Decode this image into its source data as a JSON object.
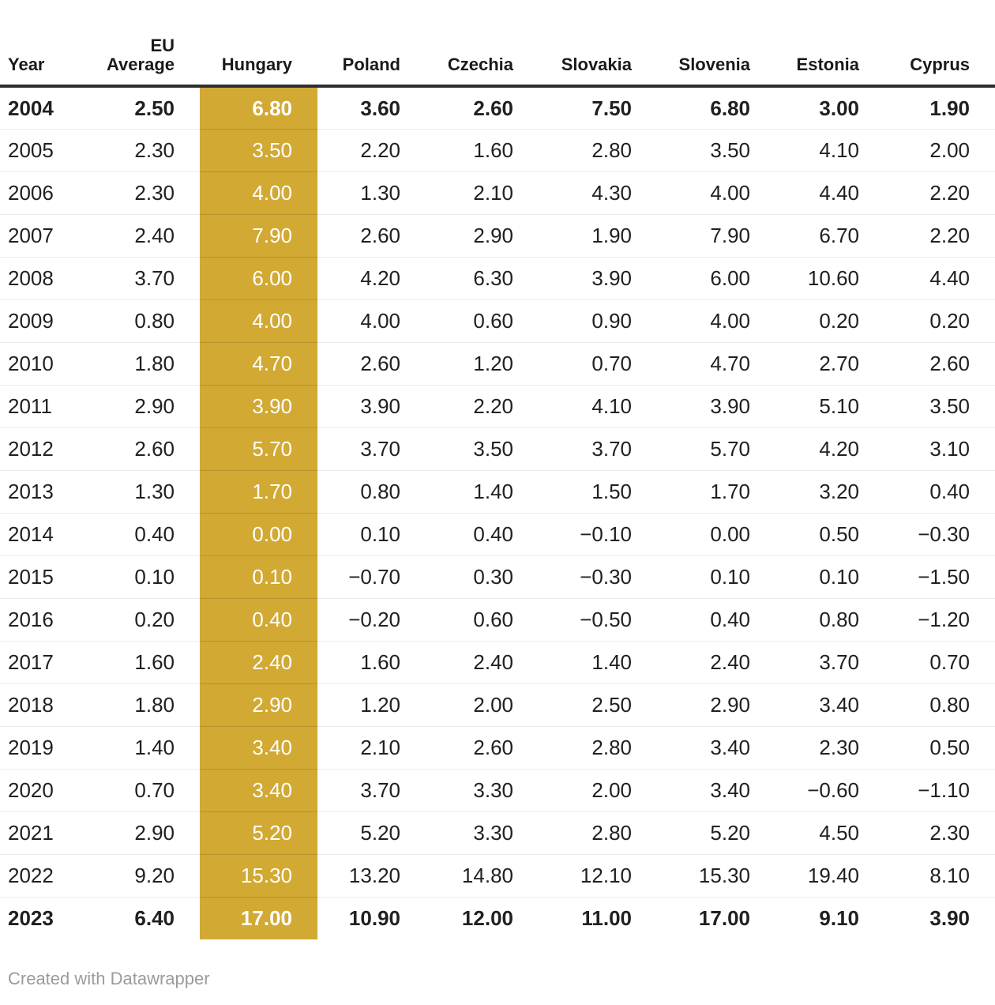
{
  "chart_data": {
    "type": "table",
    "columns": [
      {
        "label": "Year",
        "align": "left"
      },
      {
        "label": "EU Average",
        "wrap": true
      },
      {
        "label": "Hungary",
        "highlight": true
      },
      {
        "label": "Poland"
      },
      {
        "label": "Czechia"
      },
      {
        "label": "Slovakia"
      },
      {
        "label": "Slovenia"
      },
      {
        "label": "Estonia"
      },
      {
        "label": "Cyprus"
      }
    ],
    "rows": [
      {
        "bold": true,
        "values": [
          "2004",
          "2.50",
          "6.80",
          "3.60",
          "2.60",
          "7.50",
          "6.80",
          "3.00",
          "1.90"
        ]
      },
      {
        "bold": false,
        "values": [
          "2005",
          "2.30",
          "3.50",
          "2.20",
          "1.60",
          "2.80",
          "3.50",
          "4.10",
          "2.00"
        ]
      },
      {
        "bold": false,
        "values": [
          "2006",
          "2.30",
          "4.00",
          "1.30",
          "2.10",
          "4.30",
          "4.00",
          "4.40",
          "2.20"
        ]
      },
      {
        "bold": false,
        "values": [
          "2007",
          "2.40",
          "7.90",
          "2.60",
          "2.90",
          "1.90",
          "7.90",
          "6.70",
          "2.20"
        ]
      },
      {
        "bold": false,
        "values": [
          "2008",
          "3.70",
          "6.00",
          "4.20",
          "6.30",
          "3.90",
          "6.00",
          "10.60",
          "4.40"
        ]
      },
      {
        "bold": false,
        "values": [
          "2009",
          "0.80",
          "4.00",
          "4.00",
          "0.60",
          "0.90",
          "4.00",
          "0.20",
          "0.20"
        ]
      },
      {
        "bold": false,
        "values": [
          "2010",
          "1.80",
          "4.70",
          "2.60",
          "1.20",
          "0.70",
          "4.70",
          "2.70",
          "2.60"
        ]
      },
      {
        "bold": false,
        "values": [
          "2011",
          "2.90",
          "3.90",
          "3.90",
          "2.20",
          "4.10",
          "3.90",
          "5.10",
          "3.50"
        ]
      },
      {
        "bold": false,
        "values": [
          "2012",
          "2.60",
          "5.70",
          "3.70",
          "3.50",
          "3.70",
          "5.70",
          "4.20",
          "3.10"
        ]
      },
      {
        "bold": false,
        "values": [
          "2013",
          "1.30",
          "1.70",
          "0.80",
          "1.40",
          "1.50",
          "1.70",
          "3.20",
          "0.40"
        ]
      },
      {
        "bold": false,
        "values": [
          "2014",
          "0.40",
          "0.00",
          "0.10",
          "0.40",
          "−0.10",
          "0.00",
          "0.50",
          "−0.30"
        ]
      },
      {
        "bold": false,
        "values": [
          "2015",
          "0.10",
          "0.10",
          "−0.70",
          "0.30",
          "−0.30",
          "0.10",
          "0.10",
          "−1.50"
        ]
      },
      {
        "bold": false,
        "values": [
          "2016",
          "0.20",
          "0.40",
          "−0.20",
          "0.60",
          "−0.50",
          "0.40",
          "0.80",
          "−1.20"
        ]
      },
      {
        "bold": false,
        "values": [
          "2017",
          "1.60",
          "2.40",
          "1.60",
          "2.40",
          "1.40",
          "2.40",
          "3.70",
          "0.70"
        ]
      },
      {
        "bold": false,
        "values": [
          "2018",
          "1.80",
          "2.90",
          "1.20",
          "2.00",
          "2.50",
          "2.90",
          "3.40",
          "0.80"
        ]
      },
      {
        "bold": false,
        "values": [
          "2019",
          "1.40",
          "3.40",
          "2.10",
          "2.60",
          "2.80",
          "3.40",
          "2.30",
          "0.50"
        ]
      },
      {
        "bold": false,
        "values": [
          "2020",
          "0.70",
          "3.40",
          "3.70",
          "3.30",
          "2.00",
          "3.40",
          "−0.60",
          "−1.10"
        ]
      },
      {
        "bold": false,
        "values": [
          "2021",
          "2.90",
          "5.20",
          "5.20",
          "3.30",
          "2.80",
          "5.20",
          "4.50",
          "2.30"
        ]
      },
      {
        "bold": false,
        "values": [
          "2022",
          "9.20",
          "15.30",
          "13.20",
          "14.80",
          "12.10",
          "15.30",
          "19.40",
          "8.10"
        ]
      },
      {
        "bold": true,
        "values": [
          "2023",
          "6.40",
          "17.00",
          "10.90",
          "12.00",
          "11.00",
          "17.00",
          "9.10",
          "3.90"
        ]
      }
    ]
  },
  "footer": {
    "credit": "Created with Datawrapper"
  },
  "colors": {
    "highlight": "#d1a933",
    "header_rule": "#2e2e2e",
    "row_divider": "rgba(0,0,0,0.08)",
    "body_text": "#202022",
    "highlight_text": "#ffffff",
    "credit_text": "#9b9b9b"
  }
}
